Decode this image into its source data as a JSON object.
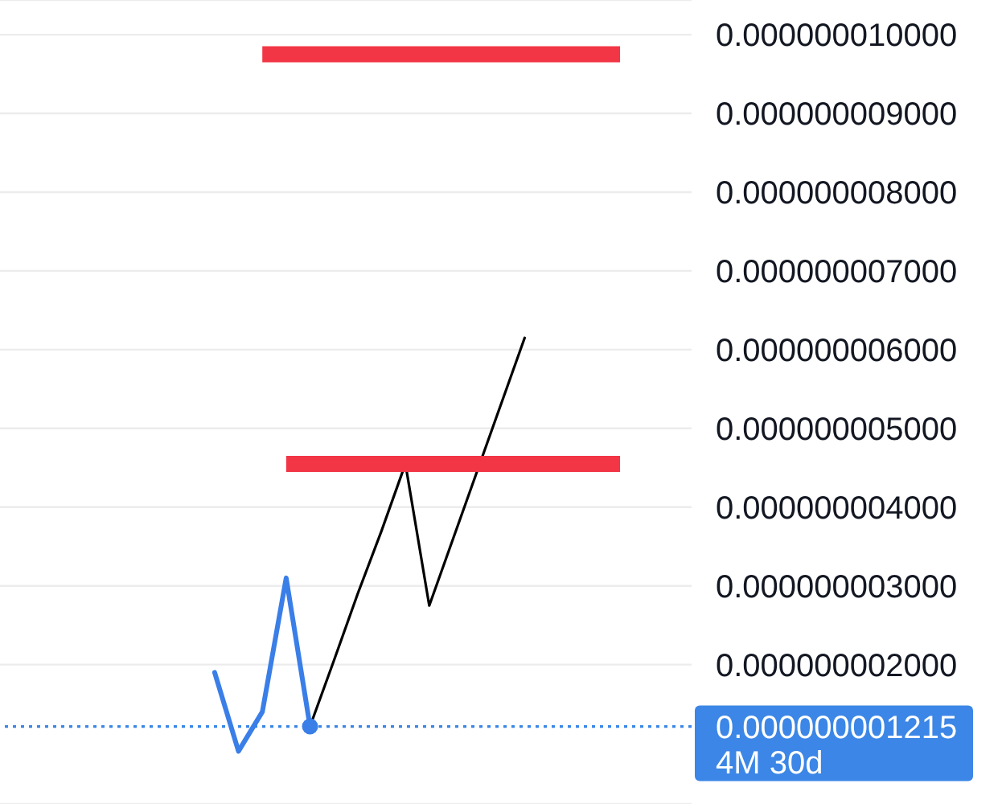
{
  "chart_data": {
    "type": "line",
    "categories": [
      null,
      null,
      null,
      null,
      null,
      null,
      null,
      null,
      null,
      null,
      null,
      null,
      null,
      null,
      null,
      null,
      null,
      null,
      null,
      null,
      null,
      null,
      null,
      null,
      null,
      null,
      null,
      null,
      null,
      null
    ],
    "ylim": [
      2.3e-10,
      1.044e-08
    ],
    "yticks": [
      {
        "value": 2e-09,
        "label": "0.000000002000"
      },
      {
        "value": 3e-09,
        "label": "0.000000003000"
      },
      {
        "value": 4e-09,
        "label": "0.000000004000"
      },
      {
        "value": 5e-09,
        "label": "0.000000005000"
      },
      {
        "value": 6e-09,
        "label": "0.000000006000"
      },
      {
        "value": 7e-09,
        "label": "0.000000007000"
      },
      {
        "value": 8e-09,
        "label": "0.000000008000"
      },
      {
        "value": 9e-09,
        "label": "0.000000009000"
      },
      {
        "value": 1e-08,
        "label": "0.000000010000"
      }
    ],
    "grid": "y",
    "series": [
      {
        "color": "#3a7ee8",
        "values": [
          null,
          null,
          null,
          null,
          null,
          null,
          null,
          null,
          null,
          1.9e-09,
          9e-10,
          1.4e-09,
          3.1e-09,
          1.215e-09,
          null,
          null,
          null,
          null,
          null,
          null,
          null,
          null,
          null,
          null,
          null,
          null,
          null,
          null,
          null,
          null
        ]
      },
      {
        "color": "#000000",
        "values": [
          null,
          null,
          null,
          null,
          null,
          null,
          null,
          null,
          null,
          null,
          null,
          null,
          null,
          1.215e-09,
          2.05e-09,
          2.9e-09,
          3.7e-09,
          4.55e-09,
          2.75e-09,
          3.6e-09,
          4.45e-09,
          5.3e-09,
          6.15e-09,
          null,
          null,
          null,
          null,
          null,
          null,
          null
        ]
      },
      {
        "color": "#f23645",
        "values": [
          null,
          null,
          null,
          null,
          null,
          null,
          null,
          null,
          null,
          null,
          null,
          9.75e-09,
          9.75e-09,
          9.75e-09,
          9.75e-09,
          9.75e-09,
          9.75e-09,
          9.75e-09,
          9.75e-09,
          9.75e-09,
          9.75e-09,
          9.75e-09,
          9.75e-09,
          9.75e-09,
          9.75e-09,
          9.75e-09,
          9.75e-09,
          null,
          null,
          null
        ]
      },
      {
        "color": "#f23645",
        "values": [
          null,
          null,
          null,
          null,
          null,
          null,
          null,
          null,
          null,
          null,
          null,
          null,
          4.55e-09,
          4.55e-09,
          4.55e-09,
          4.55e-09,
          4.55e-09,
          4.55e-09,
          4.55e-09,
          4.55e-09,
          4.55e-09,
          4.55e-09,
          4.55e-09,
          4.55e-09,
          4.55e-09,
          4.55e-09,
          4.55e-09,
          null,
          null,
          null
        ]
      }
    ],
    "ref_lines": [
      {
        "axis": "y",
        "value": 1.215e-09,
        "label": "0.000000001215\n4M 30d",
        "color": "#3b86e6",
        "line_style": "dotted"
      }
    ]
  }
}
